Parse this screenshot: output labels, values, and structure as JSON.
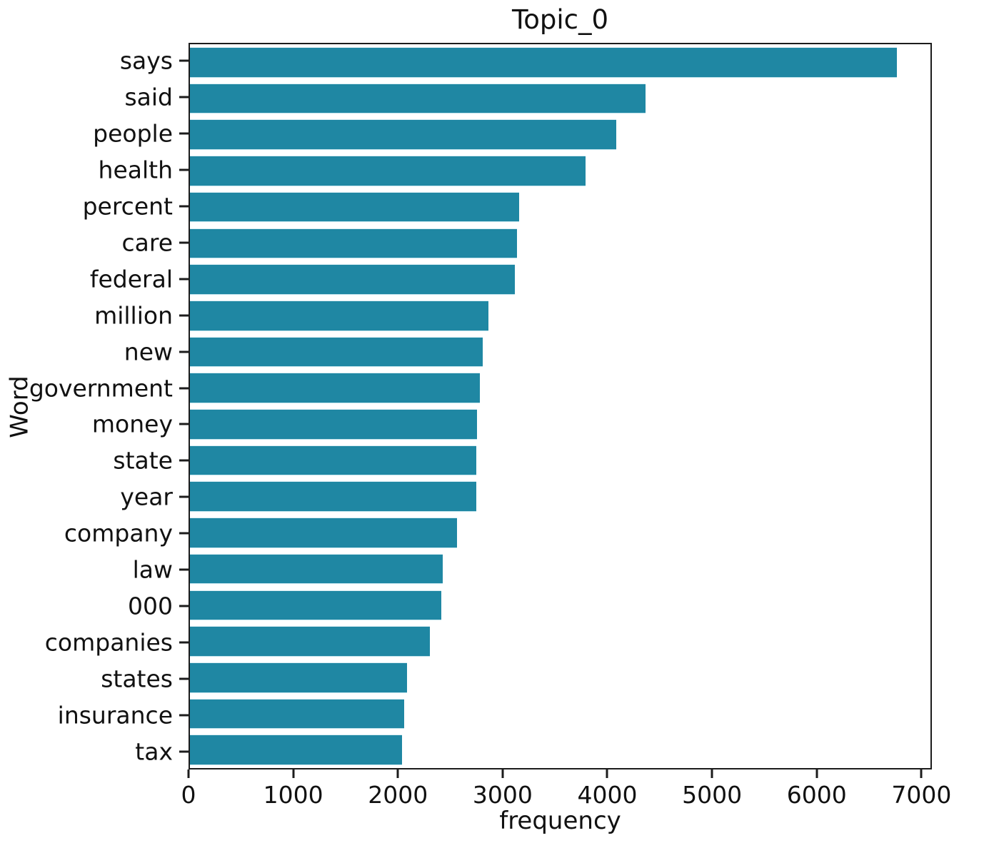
{
  "colors": {
    "bar": "#1f87a3",
    "spine": "#1c1c1c",
    "text": "#111111",
    "background": "#ffffff"
  },
  "chart_data": {
    "type": "bar",
    "orientation": "horizontal",
    "title": "Topic_0",
    "xlabel": "frequency",
    "ylabel": "Word",
    "categories": [
      "says",
      "said",
      "people",
      "health",
      "percent",
      "care",
      "federal",
      "million",
      "new",
      "government",
      "money",
      "state",
      "year",
      "company",
      "law",
      "000",
      "companies",
      "states",
      "insurance",
      "tax"
    ],
    "values": [
      6780,
      4370,
      4085,
      3795,
      3155,
      3135,
      3115,
      2860,
      2810,
      2780,
      2750,
      2748,
      2745,
      2560,
      2425,
      2410,
      2300,
      2080,
      2055,
      2035
    ],
    "x_ticks": [
      0,
      1000,
      2000,
      3000,
      4000,
      5000,
      6000,
      7000
    ],
    "xlim": [
      0,
      7100
    ],
    "grid": false,
    "legend": null,
    "bar_color_hex": "#1f87a3"
  }
}
